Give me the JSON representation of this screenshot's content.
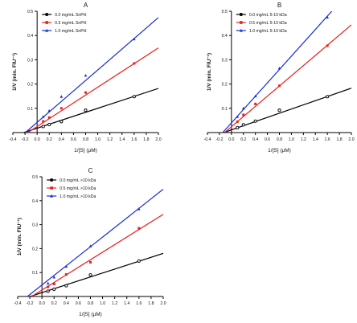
{
  "chart_data": [
    {
      "type": "scatter",
      "panel_label": "A",
      "xlabel": "1/[S] (μM)",
      "ylabel": "1/V (min. FIU⁻¹)",
      "xlim": [
        -0.4,
        2.0
      ],
      "ylim": [
        0,
        0.5
      ],
      "xticks": [
        -0.4,
        -0.2,
        0.0,
        0.2,
        0.4,
        0.6,
        0.8,
        1.0,
        1.2,
        1.4,
        1.6,
        1.8,
        2.0
      ],
      "xtick_labels": [
        "-0.4",
        "-0.2",
        "0.0",
        "0.2",
        "0.4",
        "0.6",
        "0.8",
        "1.0",
        "1.2",
        "1.4",
        "1.6",
        "1.8",
        "2.0"
      ],
      "yticks": [
        0.1,
        0.2,
        0.3,
        0.4,
        0.5
      ],
      "ytick_labels": [
        "0.1",
        "0.2",
        "0.3",
        "0.4",
        "0.5"
      ],
      "legend_position": "top-left",
      "grid": false,
      "series": [
        {
          "name": "0.0 mg/mL SnPH",
          "color": "#000000",
          "marker": "circle",
          "x": [
            0.1,
            0.2,
            0.4,
            0.8,
            1.6
          ],
          "y": [
            0.025,
            0.033,
            0.045,
            0.092,
            0.148
          ],
          "fit": {
            "slope": 0.082,
            "intercept": 0.018
          }
        },
        {
          "name": "0.5 mg/mL SnPH",
          "color": "#e8201f",
          "marker": "square",
          "x": [
            0.1,
            0.2,
            0.4,
            0.8,
            1.6
          ],
          "y": [
            0.046,
            0.062,
            0.1,
            0.165,
            0.285
          ],
          "fit": {
            "slope": 0.162,
            "intercept": 0.025
          }
        },
        {
          "name": "1.0 mg/mL SnPH",
          "color": "#1a2fd6",
          "marker": "triangle",
          "x": [
            0.1,
            0.2,
            0.4,
            0.8,
            1.6
          ],
          "y": [
            0.065,
            0.09,
            0.148,
            0.235,
            0.385
          ],
          "fit": {
            "slope": 0.216,
            "intercept": 0.042
          }
        }
      ]
    },
    {
      "type": "scatter",
      "panel_label": "B",
      "xlabel": "1/[S] (μM)",
      "ylabel": "1/V (min. FIU⁻¹)",
      "xlim": [
        -0.4,
        2.0
      ],
      "ylim": [
        0,
        0.5
      ],
      "xticks": [
        -0.4,
        -0.2,
        0.0,
        0.2,
        0.4,
        0.6,
        0.8,
        1.0,
        1.2,
        1.4,
        1.6,
        1.8,
        2.0
      ],
      "xtick_labels": [
        "-0.4",
        "-0.2",
        "0.0",
        "0.2",
        "0.4",
        "0.6",
        "0.8",
        "1.0",
        "1.2",
        "1.4",
        "1.6",
        "1.8",
        "2.0"
      ],
      "yticks": [
        0.1,
        0.2,
        0.3,
        0.4,
        0.5
      ],
      "ytick_labels": [
        "0.1",
        "0.2",
        "0.3",
        "0.4",
        "0.5"
      ],
      "legend_position": "top-left",
      "grid": false,
      "series": [
        {
          "name": "0.0 mg/mL 5-10 kDa",
          "color": "#000000",
          "marker": "circle",
          "x": [
            0.1,
            0.2,
            0.4,
            0.8,
            1.6
          ],
          "y": [
            0.02,
            0.032,
            0.047,
            0.092,
            0.148
          ],
          "fit": {
            "slope": 0.086,
            "intercept": 0.011
          }
        },
        {
          "name": "0.5 mg/mL 5-10 kDa",
          "color": "#e8201f",
          "marker": "square",
          "x": [
            0.1,
            0.2,
            0.4,
            0.8,
            1.6
          ],
          "y": [
            0.045,
            0.073,
            0.118,
            0.193,
            0.358
          ],
          "fit": {
            "slope": 0.21,
            "intercept": 0.024
          }
        },
        {
          "name": "1.0 mg/mL 5-10 kDa",
          "color": "#1a2fd6",
          "marker": "triangle",
          "x": [
            0.1,
            0.2,
            0.4,
            0.8,
            1.6
          ],
          "y": [
            0.065,
            0.1,
            0.15,
            0.265,
            0.475
          ],
          "fit": {
            "slope": 0.275,
            "intercept": 0.04
          }
        }
      ]
    },
    {
      "type": "scatter",
      "panel_label": "C",
      "xlabel": "1/[S] (μM)",
      "ylabel": "1/V (min. FIU⁻¹)",
      "xlim": [
        -0.4,
        2.0
      ],
      "ylim": [
        0,
        0.5
      ],
      "xticks": [
        -0.4,
        -0.2,
        0.0,
        0.2,
        0.4,
        0.6,
        0.8,
        1.0,
        1.2,
        1.4,
        1.6,
        1.8,
        2.0
      ],
      "xtick_labels": [
        "-0.4",
        "-0.2",
        "0.0",
        "0.2",
        "0.4",
        "0.6",
        "0.8",
        "1.0",
        "1.2",
        "1.4",
        "1.6",
        "1.8",
        "2.0"
      ],
      "yticks": [
        0.1,
        0.2,
        0.3,
        0.4,
        0.5
      ],
      "ytick_labels": [
        "0.1",
        "0.2",
        "0.3",
        "0.4",
        "0.5"
      ],
      "legend_position": "top-left",
      "grid": false,
      "series": [
        {
          "name": "0.0 mg/mL >10 kDa",
          "color": "#000000",
          "marker": "circle",
          "x": [
            0.1,
            0.2,
            0.4,
            0.8,
            1.6
          ],
          "y": [
            0.022,
            0.03,
            0.045,
            0.09,
            0.148
          ],
          "fit": {
            "slope": 0.082,
            "intercept": 0.016
          }
        },
        {
          "name": "0.5 mg/mL >10 kDa",
          "color": "#e8201f",
          "marker": "square",
          "x": [
            0.1,
            0.2,
            0.4,
            0.8,
            1.6
          ],
          "y": [
            0.04,
            0.052,
            0.092,
            0.143,
            0.285
          ],
          "fit": {
            "slope": 0.158,
            "intercept": 0.027
          }
        },
        {
          "name": "1.0 mg/mL >10 kDa",
          "color": "#1a2fd6",
          "marker": "triangle",
          "x": [
            0.1,
            0.2,
            0.4,
            0.8,
            1.6
          ],
          "y": [
            0.055,
            0.08,
            0.125,
            0.21,
            0.365
          ],
          "fit": {
            "slope": 0.2,
            "intercept": 0.048
          }
        }
      ]
    }
  ]
}
